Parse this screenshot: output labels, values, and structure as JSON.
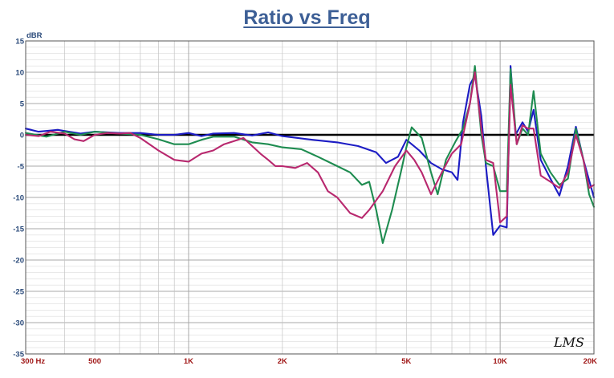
{
  "chart_data": {
    "type": "line",
    "title": "Ratio vs Freq",
    "ylabel": "dBR",
    "xlabel": "",
    "xscale": "log",
    "xlim": [
      300,
      20000
    ],
    "ylim": [
      -35,
      15
    ],
    "grid": true,
    "legend": "none",
    "yticks": [
      15,
      10,
      5,
      0,
      -5,
      -10,
      -15,
      -20,
      -25,
      -30,
      -35
    ],
    "xtick_labels": [
      {
        "value": 300,
        "label": "300 Hz"
      },
      {
        "value": 500,
        "label": "500"
      },
      {
        "value": 1000,
        "label": "1K"
      },
      {
        "value": 2000,
        "label": "2K"
      },
      {
        "value": 5000,
        "label": "5K"
      },
      {
        "value": 10000,
        "label": "10K"
      },
      {
        "value": 20000,
        "label": "20K"
      }
    ],
    "colors": {
      "blue": "#1c1cc4",
      "green": "#1e8c50",
      "magenta": "#b8286e",
      "zero_line": "#000000",
      "title": "#3d5f96"
    },
    "series": [
      {
        "color": "#1c1cc4",
        "points": [
          [
            300,
            1
          ],
          [
            330,
            0.5
          ],
          [
            380,
            0.8
          ],
          [
            450,
            0.2
          ],
          [
            500,
            0.5
          ],
          [
            600,
            0.3
          ],
          [
            700,
            0.3
          ],
          [
            800,
            0
          ],
          [
            900,
            0
          ],
          [
            1000,
            0.3
          ],
          [
            1100,
            -0.2
          ],
          [
            1200,
            0.2
          ],
          [
            1400,
            0.3
          ],
          [
            1600,
            -0.1
          ],
          [
            1800,
            0.4
          ],
          [
            2000,
            -0.2
          ],
          [
            2500,
            -0.8
          ],
          [
            3000,
            -1.2
          ],
          [
            3500,
            -1.8
          ],
          [
            4000,
            -2.8
          ],
          [
            4300,
            -4.5
          ],
          [
            4700,
            -3.5
          ],
          [
            5000,
            -0.8
          ],
          [
            5500,
            -2.5
          ],
          [
            6000,
            -4.5
          ],
          [
            6500,
            -5.5
          ],
          [
            7000,
            -6
          ],
          [
            7300,
            -7.2
          ],
          [
            7600,
            2
          ],
          [
            8000,
            8
          ],
          [
            8300,
            9.5
          ],
          [
            8700,
            3
          ],
          [
            9000,
            -5
          ],
          [
            9500,
            -16
          ],
          [
            10000,
            -14.5
          ],
          [
            10500,
            -14.8
          ],
          [
            10800,
            11
          ],
          [
            11200,
            0
          ],
          [
            11800,
            2
          ],
          [
            12300,
            0.5
          ],
          [
            12800,
            4
          ],
          [
            13500,
            -4
          ],
          [
            14500,
            -7
          ],
          [
            15500,
            -9.7
          ],
          [
            16500,
            -5
          ],
          [
            17500,
            1.3
          ],
          [
            18500,
            -4
          ],
          [
            20000,
            -10
          ]
        ]
      },
      {
        "color": "#1e8c50",
        "points": [
          [
            300,
            0.3
          ],
          [
            350,
            -0.3
          ],
          [
            400,
            0.5
          ],
          [
            450,
            0
          ],
          [
            500,
            0.5
          ],
          [
            600,
            0.2
          ],
          [
            700,
            0
          ],
          [
            800,
            -0.7
          ],
          [
            900,
            -1.5
          ],
          [
            1000,
            -1.5
          ],
          [
            1100,
            -0.8
          ],
          [
            1200,
            -0.3
          ],
          [
            1400,
            -0.3
          ],
          [
            1600,
            -1.2
          ],
          [
            1800,
            -1.5
          ],
          [
            2000,
            -2
          ],
          [
            2300,
            -2.3
          ],
          [
            2600,
            -3.5
          ],
          [
            3000,
            -5
          ],
          [
            3300,
            -6
          ],
          [
            3600,
            -8
          ],
          [
            3800,
            -7.5
          ],
          [
            4000,
            -12
          ],
          [
            4200,
            -17.3
          ],
          [
            4500,
            -12
          ],
          [
            4800,
            -6
          ],
          [
            5000,
            -2
          ],
          [
            5200,
            1.2
          ],
          [
            5600,
            -0.5
          ],
          [
            6000,
            -6
          ],
          [
            6300,
            -9.5
          ],
          [
            6700,
            -4
          ],
          [
            7200,
            -1
          ],
          [
            7600,
            1
          ],
          [
            8000,
            5
          ],
          [
            8300,
            11
          ],
          [
            8700,
            0
          ],
          [
            9000,
            -4.5
          ],
          [
            9500,
            -5
          ],
          [
            10000,
            -9
          ],
          [
            10500,
            -9
          ],
          [
            10800,
            10.5
          ],
          [
            11300,
            -1.5
          ],
          [
            11800,
            1
          ],
          [
            12300,
            0
          ],
          [
            12800,
            7
          ],
          [
            13500,
            -3
          ],
          [
            14500,
            -6
          ],
          [
            15500,
            -8
          ],
          [
            16500,
            -7
          ],
          [
            17500,
            1
          ],
          [
            18500,
            -4
          ],
          [
            19300,
            -9.5
          ],
          [
            20000,
            -11.5
          ]
        ]
      },
      {
        "color": "#b8286e",
        "points": [
          [
            300,
            0
          ],
          [
            330,
            -0.2
          ],
          [
            360,
            0.5
          ],
          [
            400,
            0.2
          ],
          [
            430,
            -0.7
          ],
          [
            460,
            -1
          ],
          [
            500,
            0
          ],
          [
            550,
            0.3
          ],
          [
            600,
            0.2
          ],
          [
            650,
            0.3
          ],
          [
            700,
            -0.5
          ],
          [
            800,
            -2.5
          ],
          [
            900,
            -4
          ],
          [
            1000,
            -4.3
          ],
          [
            1100,
            -3
          ],
          [
            1200,
            -2.5
          ],
          [
            1300,
            -1.5
          ],
          [
            1400,
            -1
          ],
          [
            1500,
            -0.5
          ],
          [
            1700,
            -3
          ],
          [
            1800,
            -4
          ],
          [
            1900,
            -5
          ],
          [
            2000,
            -5
          ],
          [
            2200,
            -5.3
          ],
          [
            2400,
            -4.5
          ],
          [
            2600,
            -6
          ],
          [
            2800,
            -9
          ],
          [
            3000,
            -10
          ],
          [
            3300,
            -12.5
          ],
          [
            3600,
            -13.3
          ],
          [
            3800,
            -12
          ],
          [
            4200,
            -9
          ],
          [
            4600,
            -5
          ],
          [
            5000,
            -2.5
          ],
          [
            5300,
            -4
          ],
          [
            5600,
            -6
          ],
          [
            6000,
            -9.5
          ],
          [
            6500,
            -6
          ],
          [
            7000,
            -3
          ],
          [
            7500,
            -1.5
          ],
          [
            8000,
            5
          ],
          [
            8300,
            10
          ],
          [
            8700,
            1
          ],
          [
            9000,
            -4
          ],
          [
            9500,
            -4.5
          ],
          [
            10000,
            -14
          ],
          [
            10500,
            -13
          ],
          [
            10800,
            8
          ],
          [
            11300,
            -1.5
          ],
          [
            11800,
            1.5
          ],
          [
            12300,
            1
          ],
          [
            12800,
            1
          ],
          [
            13500,
            -6.5
          ],
          [
            14500,
            -7.5
          ],
          [
            15500,
            -8.5
          ],
          [
            16500,
            -6
          ],
          [
            17500,
            0
          ],
          [
            18500,
            -4
          ],
          [
            19300,
            -8.5
          ],
          [
            20000,
            -8
          ]
        ]
      }
    ]
  },
  "logo": {
    "text": "LMS"
  }
}
